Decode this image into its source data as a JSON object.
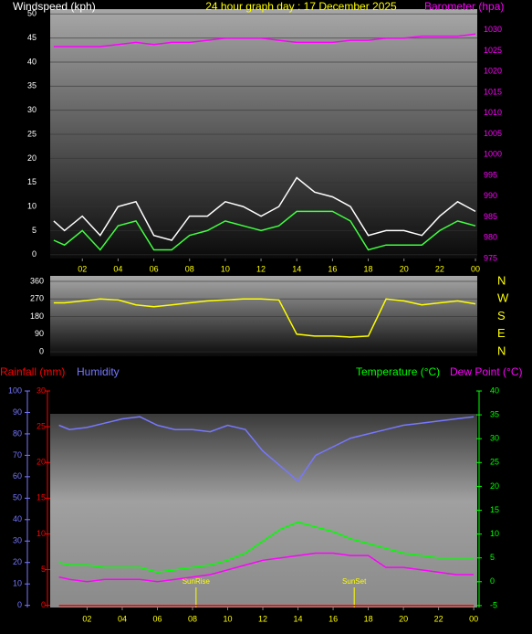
{
  "chart_data": [
    {
      "type": "line",
      "title": "24 hour graph day : 17 December 2025",
      "ylabel": "Windspeed (kph)",
      "y2label": "Barometer (hpa)",
      "x": [
        0.4,
        1,
        2,
        3,
        4,
        5,
        6,
        7,
        8,
        9,
        10,
        11,
        12,
        13,
        14,
        15,
        16,
        17,
        18,
        19,
        20,
        21,
        22,
        23,
        24
      ],
      "xlim": [
        0.2,
        24.1
      ],
      "xticks": [
        {
          "value": 2,
          "label": "02"
        },
        {
          "value": 4,
          "label": "04"
        },
        {
          "value": 6,
          "label": "06"
        },
        {
          "value": 8,
          "label": "08"
        },
        10,
        12,
        14,
        16,
        18,
        20,
        22,
        {
          "value": 24,
          "label": "00"
        }
      ],
      "ylim": [
        -0.8,
        51
      ],
      "yticks": [
        0,
        5,
        10,
        15,
        20,
        25,
        30,
        35,
        40,
        45,
        50
      ],
      "y2lim": [
        975,
        1035
      ],
      "y2ticks": [
        975,
        980,
        985,
        990,
        995,
        1000,
        1005,
        1010,
        1015,
        1020,
        1025,
        1030
      ],
      "grid": true,
      "series": [
        {
          "color": "#ffffff",
          "values": [
            7,
            5,
            8,
            4,
            10,
            11,
            4,
            3,
            8,
            8,
            11,
            10,
            8,
            10,
            16,
            13,
            12,
            10,
            4,
            5,
            5,
            4,
            8,
            11,
            9
          ]
        },
        {
          "color": "#40ff40",
          "values": [
            3,
            2,
            5,
            1,
            6,
            7,
            1,
            1,
            4,
            5,
            7,
            6,
            5,
            6,
            9,
            9,
            9,
            7,
            1,
            2,
            2,
            2,
            5,
            7,
            6
          ]
        },
        {
          "color": "#ff00ff",
          "axis": "y2",
          "values": [
            1026,
            1026,
            1026,
            1026,
            1026.5,
            1027,
            1026.5,
            1027,
            1027,
            1027.5,
            1028,
            1028,
            1028,
            1027.5,
            1027,
            1027,
            1027,
            1027.5,
            1027.5,
            1028,
            1028,
            1028.5,
            1028.5,
            1028.5,
            1029
          ]
        }
      ]
    },
    {
      "type": "line",
      "x": [
        0.4,
        1,
        2,
        3,
        4,
        5,
        6,
        7,
        8,
        9,
        10,
        11,
        12,
        13,
        14,
        15,
        16,
        17,
        18,
        19,
        20,
        21,
        22,
        23,
        24
      ],
      "xlim": [
        0.2,
        24.1
      ],
      "ylim": [
        -23,
        388
      ],
      "yticks": [
        0,
        90,
        180,
        270,
        360
      ],
      "y2lim": [
        -23,
        388
      ],
      "y2ticks": [
        {
          "value": 360,
          "label": "N"
        },
        {
          "value": 270,
          "label": "W"
        },
        {
          "value": 180,
          "label": "S"
        },
        {
          "value": 90,
          "label": "E"
        },
        {
          "value": 0,
          "label": "N"
        }
      ],
      "grid": true,
      "series": [
        {
          "color": "#ffff00",
          "values": [
            250,
            250,
            260,
            270,
            265,
            240,
            230,
            240,
            250,
            260,
            265,
            270,
            270,
            265,
            90,
            80,
            80,
            75,
            80,
            270,
            260,
            240,
            250,
            260,
            245
          ]
        }
      ]
    },
    {
      "type": "line",
      "x": [
        0.4,
        1,
        2,
        3,
        4,
        5,
        6,
        7,
        8,
        9,
        10,
        11,
        12,
        13,
        14,
        15,
        16,
        17,
        18,
        19,
        20,
        21,
        22,
        23,
        24
      ],
      "xlim": [
        -0.1,
        24.2
      ],
      "xticks": [
        {
          "value": 2,
          "label": "02"
        },
        {
          "value": 4,
          "label": "04"
        },
        {
          "value": 6,
          "label": "06"
        },
        {
          "value": 8,
          "label": "08"
        },
        10,
        12,
        14,
        16,
        18,
        20,
        22,
        {
          "value": 24,
          "label": "00"
        }
      ],
      "ylim": [
        -1,
        100
      ],
      "yticks": [
        0,
        10,
        20,
        30,
        40,
        50,
        60,
        70,
        80,
        90,
        100
      ],
      "y3lim": [
        -0.3,
        30
      ],
      "y3ticks": [
        0,
        5,
        10,
        15,
        20,
        25,
        30
      ],
      "y2lim": [
        -5.4,
        40
      ],
      "y2ticks": [
        -5,
        0,
        5,
        10,
        15,
        20,
        25,
        30,
        35,
        40
      ],
      "annotations": [
        {
          "x": 8.2,
          "text": "SunRise"
        },
        {
          "x": 17.2,
          "text": "SunSet"
        }
      ],
      "series": [
        {
          "name": "Rainfall (mm)",
          "color": "#ff0000",
          "axis": "y3",
          "values": [
            0,
            0,
            0,
            0,
            0,
            0,
            0,
            0,
            0,
            0,
            0,
            0,
            0,
            0,
            0,
            0,
            0,
            0,
            0,
            0,
            0,
            0,
            0,
            0,
            0
          ]
        },
        {
          "name": "Humidity",
          "color": "#7777ff",
          "values": [
            84,
            82,
            83,
            85,
            87,
            88,
            84,
            82,
            82,
            81,
            84,
            82,
            72,
            65,
            58,
            70,
            74,
            78,
            80,
            82,
            84,
            85,
            86,
            87,
            88
          ]
        },
        {
          "name": "Temperature (°C)",
          "color": "#00ff00",
          "axis": "y2",
          "values": [
            4,
            3.5,
            3.5,
            3,
            3,
            3,
            2,
            2.5,
            3,
            3.5,
            4.5,
            6,
            8.5,
            11,
            12.5,
            11.5,
            10.5,
            9,
            8,
            7,
            6,
            5.5,
            5,
            5,
            5
          ]
        },
        {
          "name": "Dew Point (°C)",
          "color": "#ff00ff",
          "axis": "y2",
          "values": [
            1,
            0.5,
            0,
            0.5,
            0.5,
            0.5,
            0,
            0.5,
            1,
            1.5,
            2.5,
            3.5,
            4.5,
            5,
            5.5,
            6,
            6,
            5.5,
            5.5,
            3,
            3,
            2.5,
            2,
            1.5,
            1.5
          ]
        }
      ]
    }
  ]
}
